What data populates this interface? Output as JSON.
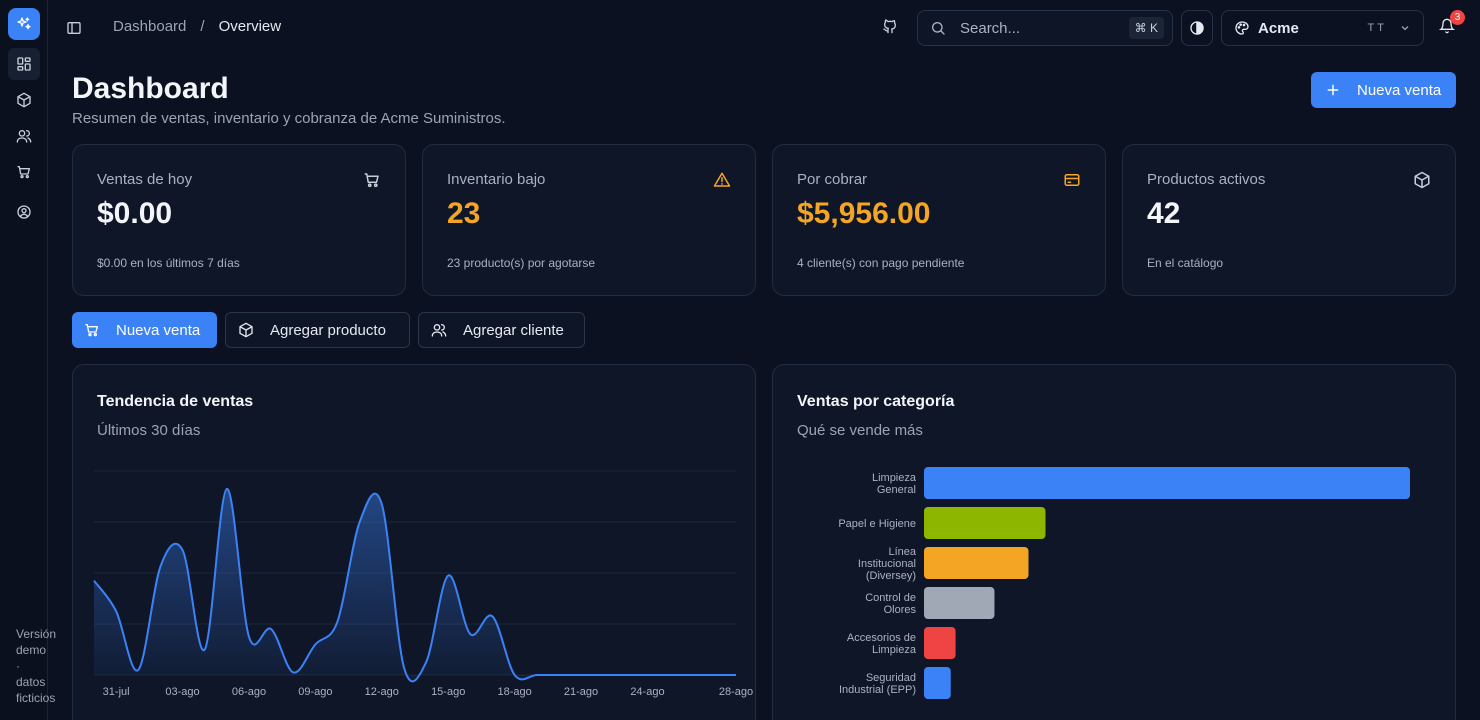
{
  "sidebar": {
    "nav": [
      "dashboard",
      "productos",
      "clientes",
      "ventas",
      "cuenta"
    ],
    "demo_note": [
      "Versión",
      "demo",
      "·",
      "datos",
      "ficticios"
    ]
  },
  "header": {
    "crumb_parent": "Dashboard",
    "crumb_sep": "/",
    "crumb_current": "Overview",
    "search_placeholder": "Search...",
    "search_shortcut": "⌘ K",
    "org_name": "Acme",
    "org_initials": "TT",
    "notifications": "3"
  },
  "page": {
    "title": "Dashboard",
    "subtitle": "Resumen de ventas, inventario y cobranza de Acme Suministros.",
    "primary_action": "Nueva venta"
  },
  "stats": [
    {
      "label": "Ventas de hoy",
      "value": "$0.00",
      "foot": "$0.00 en los últimos 7 días",
      "color": "#f3f5f9",
      "icon": "cart-icon"
    },
    {
      "label": "Inventario bajo",
      "value": "23",
      "foot": "23 producto(s) por agotarse",
      "color": "#f5a524",
      "icon": "warning-icon"
    },
    {
      "label": "Por cobrar",
      "value": "$5,956.00",
      "foot": "4 cliente(s) con pago pendiente",
      "color": "#f5a524",
      "icon": "card-icon"
    },
    {
      "label": "Productos activos",
      "value": "42",
      "foot": "En el catálogo",
      "color": "#f3f5f9",
      "icon": "box-icon"
    }
  ],
  "actions": {
    "new_sale": "Nueva venta",
    "add_product": "Agregar producto",
    "add_client": "Agregar cliente"
  },
  "trend_panel": {
    "title": "Tendencia de ventas",
    "subtitle": "Últimos 30 días"
  },
  "category_panel": {
    "title": "Ventas por categoría",
    "subtitle": "Qué se vende más"
  },
  "chart_data": [
    {
      "type": "area",
      "x_ticks": [
        "31-jul",
        "03-ago",
        "06-ago",
        "09-ago",
        "12-ago",
        "15-ago",
        "18-ago",
        "21-ago",
        "24-ago",
        "28-ago"
      ],
      "x": [
        "30-jul",
        "31-jul",
        "01-ago",
        "02-ago",
        "03-ago",
        "04-ago",
        "05-ago",
        "06-ago",
        "07-ago",
        "08-ago",
        "09-ago",
        "10-ago",
        "11-ago",
        "12-ago",
        "13-ago",
        "14-ago",
        "15-ago",
        "16-ago",
        "17-ago",
        "18-ago",
        "19-ago",
        "20-ago",
        "21-ago",
        "22-ago",
        "23-ago",
        "24-ago",
        "25-ago",
        "26-ago",
        "27-ago",
        "28-ago"
      ],
      "values": [
        74,
        50,
        4,
        85,
        98,
        20,
        146,
        30,
        36,
        2,
        24,
        42,
        120,
        134,
        6,
        10,
        78,
        32,
        46,
        0,
        0,
        0,
        0,
        0,
        0,
        0,
        0,
        0,
        0,
        0
      ],
      "grid": true,
      "color": "#3b82f6"
    },
    {
      "type": "bar",
      "orientation": "horizontal",
      "categories": [
        [
          "Limpieza",
          "General"
        ],
        [
          "Papel e Higiene"
        ],
        [
          "Línea",
          "Institucional",
          "(Diversey)"
        ],
        [
          "Control de",
          "Olores"
        ],
        [
          "Accesorios de",
          "Limpieza"
        ],
        [
          "Seguridad",
          "Industrial (EPP)"
        ]
      ],
      "values": [
        100,
        25,
        21.5,
        14.5,
        6.5,
        5.5
      ],
      "colors": [
        "#3b82f6",
        "#8db600",
        "#f5a524",
        "#a1a8b5",
        "#ef4444",
        "#3b82f6"
      ]
    }
  ]
}
